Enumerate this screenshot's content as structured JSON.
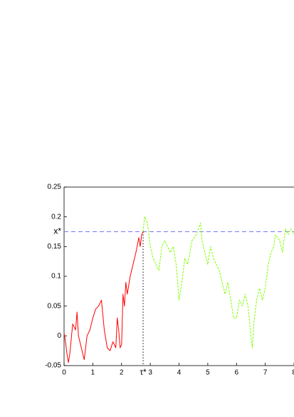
{
  "chart_data": {
    "type": "line",
    "xlim": [
      0,
      8
    ],
    "ylim": [
      -0.05,
      0.25
    ],
    "xticks": [
      0,
      1,
      2,
      3,
      4,
      5,
      6,
      7,
      8
    ],
    "yticks": [
      -0.05,
      0,
      0.05,
      0.1,
      0.15,
      0.2,
      0.25
    ],
    "series": [
      {
        "color": "#ff0000",
        "style": "solid",
        "x": [
          0,
          0.05,
          0.1,
          0.15,
          0.2,
          0.3,
          0.4,
          0.45,
          0.5,
          0.6,
          0.7,
          0.8,
          0.9,
          1.0,
          1.1,
          1.2,
          1.3,
          1.4,
          1.5,
          1.6,
          1.7,
          1.8,
          1.85,
          1.9,
          1.95,
          2.0,
          2.05,
          2.1,
          2.15,
          2.2,
          2.3,
          2.4,
          2.5,
          2.6,
          2.65,
          2.7,
          2.75
        ],
        "values": [
          0.005,
          -0.01,
          -0.03,
          -0.045,
          -0.03,
          0.02,
          0.01,
          0.04,
          0,
          -0.02,
          -0.04,
          0,
          0.01,
          0.03,
          0.045,
          0.05,
          0.06,
          0.01,
          -0.02,
          -0.025,
          -0.01,
          -0.02,
          0.03,
          0.01,
          -0.02,
          -0.015,
          0.07,
          0.05,
          0.09,
          0.07,
          0.1,
          0.12,
          0.14,
          0.165,
          0.15,
          0.17,
          0.175
        ]
      },
      {
        "color": "#7fff00",
        "style": "dashed",
        "x": [
          2.75,
          2.8,
          2.9,
          2.95,
          3.0,
          3.1,
          3.3,
          3.4,
          3.5,
          3.7,
          3.8,
          3.9,
          4.0,
          4.1,
          4.2,
          4.3,
          4.45,
          4.6,
          4.75,
          4.8,
          4.9,
          5.0,
          5.1,
          5.2,
          5.4,
          5.6,
          5.7,
          5.8,
          5.9,
          6.0,
          6.1,
          6.2,
          6.3,
          6.4,
          6.5,
          6.55,
          6.6,
          6.7,
          6.8,
          6.9,
          7.0,
          7.1,
          7.2,
          7.3,
          7.35,
          7.5,
          7.6,
          7.7,
          7.8,
          7.9,
          8.0
        ],
        "values": [
          0.175,
          0.2,
          0.19,
          0.17,
          0.15,
          0.13,
          0.11,
          0.15,
          0.16,
          0.14,
          0.15,
          0.12,
          0.06,
          0.09,
          0.13,
          0.12,
          0.16,
          0.17,
          0.19,
          0.16,
          0.14,
          0.12,
          0.15,
          0.13,
          0.11,
          0.07,
          0.09,
          0.06,
          0.03,
          0.03,
          0.06,
          0.05,
          0.07,
          0.05,
          0,
          -0.02,
          0.02,
          0.06,
          0.08,
          0.06,
          0.08,
          0.12,
          0.14,
          0.15,
          0.17,
          0.16,
          0.14,
          0.18,
          0.17,
          0.18,
          0.17
        ]
      }
    ],
    "threshold": {
      "value": 0.175,
      "label": "x*",
      "color": "#7777ee"
    },
    "stopping_time": {
      "value": 2.75,
      "label": "τ*"
    }
  }
}
